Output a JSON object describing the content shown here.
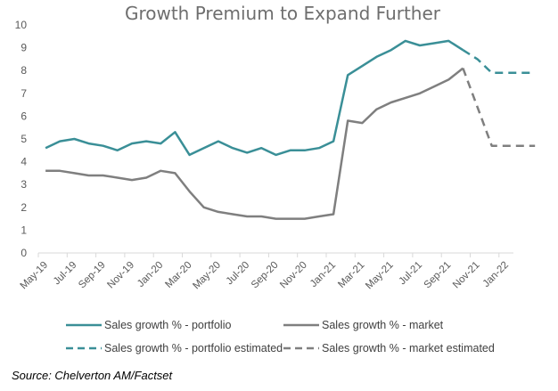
{
  "chart_data": {
    "type": "line",
    "title": "Growth Premium to Expand Further",
    "xlabel": "",
    "ylabel": "",
    "ylim": [
      0,
      10
    ],
    "yticks": [
      0,
      1,
      2,
      3,
      4,
      5,
      6,
      7,
      8,
      9,
      10
    ],
    "grid": false,
    "legend_position": "bottom",
    "x": [
      "May-19",
      "Jun-19",
      "Jul-19",
      "Aug-19",
      "Sep-19",
      "Oct-19",
      "Nov-19",
      "Dec-19",
      "Jan-20",
      "Feb-20",
      "Mar-20",
      "Apr-20",
      "May-20",
      "Jun-20",
      "Jul-20",
      "Aug-20",
      "Sep-20",
      "Oct-20",
      "Nov-20",
      "Dec-20",
      "Jan-21",
      "Feb-21",
      "Mar-21",
      "Apr-21",
      "May-21",
      "Jun-21",
      "Jul-21",
      "Aug-21",
      "Sep-21",
      "Oct-21",
      "Nov-21",
      "Dec-21",
      "Jan-22",
      "Feb-22",
      "Mar-22"
    ],
    "xtick_labels": [
      "May-19",
      "Jul-19",
      "Sep-19",
      "Nov-19",
      "Jan-20",
      "Mar-20",
      "May-20",
      "Jul-20",
      "Sep-20",
      "Nov-20",
      "Jan-21",
      "Mar-21",
      "May-21",
      "Jul-21",
      "Sep-21",
      "Nov-21",
      "Jan-22"
    ],
    "series": [
      {
        "name": "Sales growth % - portfolio",
        "color": "#3a8f97",
        "style": "solid",
        "values": [
          4.6,
          4.9,
          5.0,
          4.8,
          4.7,
          4.5,
          4.8,
          4.9,
          4.8,
          5.3,
          4.3,
          4.6,
          4.9,
          4.6,
          4.4,
          4.6,
          4.3,
          4.5,
          4.5,
          4.6,
          4.9,
          7.8,
          8.2,
          8.6,
          8.9,
          9.3,
          9.1,
          9.2,
          9.3,
          8.9,
          null,
          null,
          null,
          null,
          null
        ]
      },
      {
        "name": "Sales growth % - market",
        "color": "#7f7f7f",
        "style": "solid",
        "values": [
          3.6,
          3.6,
          3.5,
          3.4,
          3.4,
          3.3,
          3.2,
          3.3,
          3.6,
          3.5,
          2.7,
          2.0,
          1.8,
          1.7,
          1.6,
          1.6,
          1.5,
          1.5,
          1.5,
          1.6,
          1.7,
          5.8,
          5.7,
          6.3,
          6.6,
          6.8,
          7.0,
          7.3,
          7.6,
          8.1,
          null,
          null,
          null,
          null,
          null
        ]
      },
      {
        "name": "Sales growth % - portfolio estimated",
        "color": "#3a8f97",
        "style": "dashed",
        "values": [
          null,
          null,
          null,
          null,
          null,
          null,
          null,
          null,
          null,
          null,
          null,
          null,
          null,
          null,
          null,
          null,
          null,
          null,
          null,
          null,
          null,
          null,
          null,
          null,
          null,
          null,
          null,
          null,
          null,
          8.9,
          8.5,
          7.9,
          7.9,
          7.9,
          7.9
        ]
      },
      {
        "name": "Sales growth % - market estimated",
        "color": "#7f7f7f",
        "style": "dashed",
        "values": [
          null,
          null,
          null,
          null,
          null,
          null,
          null,
          null,
          null,
          null,
          null,
          null,
          null,
          null,
          null,
          null,
          null,
          null,
          null,
          null,
          null,
          null,
          null,
          null,
          null,
          null,
          null,
          null,
          null,
          8.1,
          6.4,
          4.7,
          4.7,
          4.7,
          4.7
        ]
      }
    ]
  },
  "source": "Source: Chelverton AM/Factset"
}
